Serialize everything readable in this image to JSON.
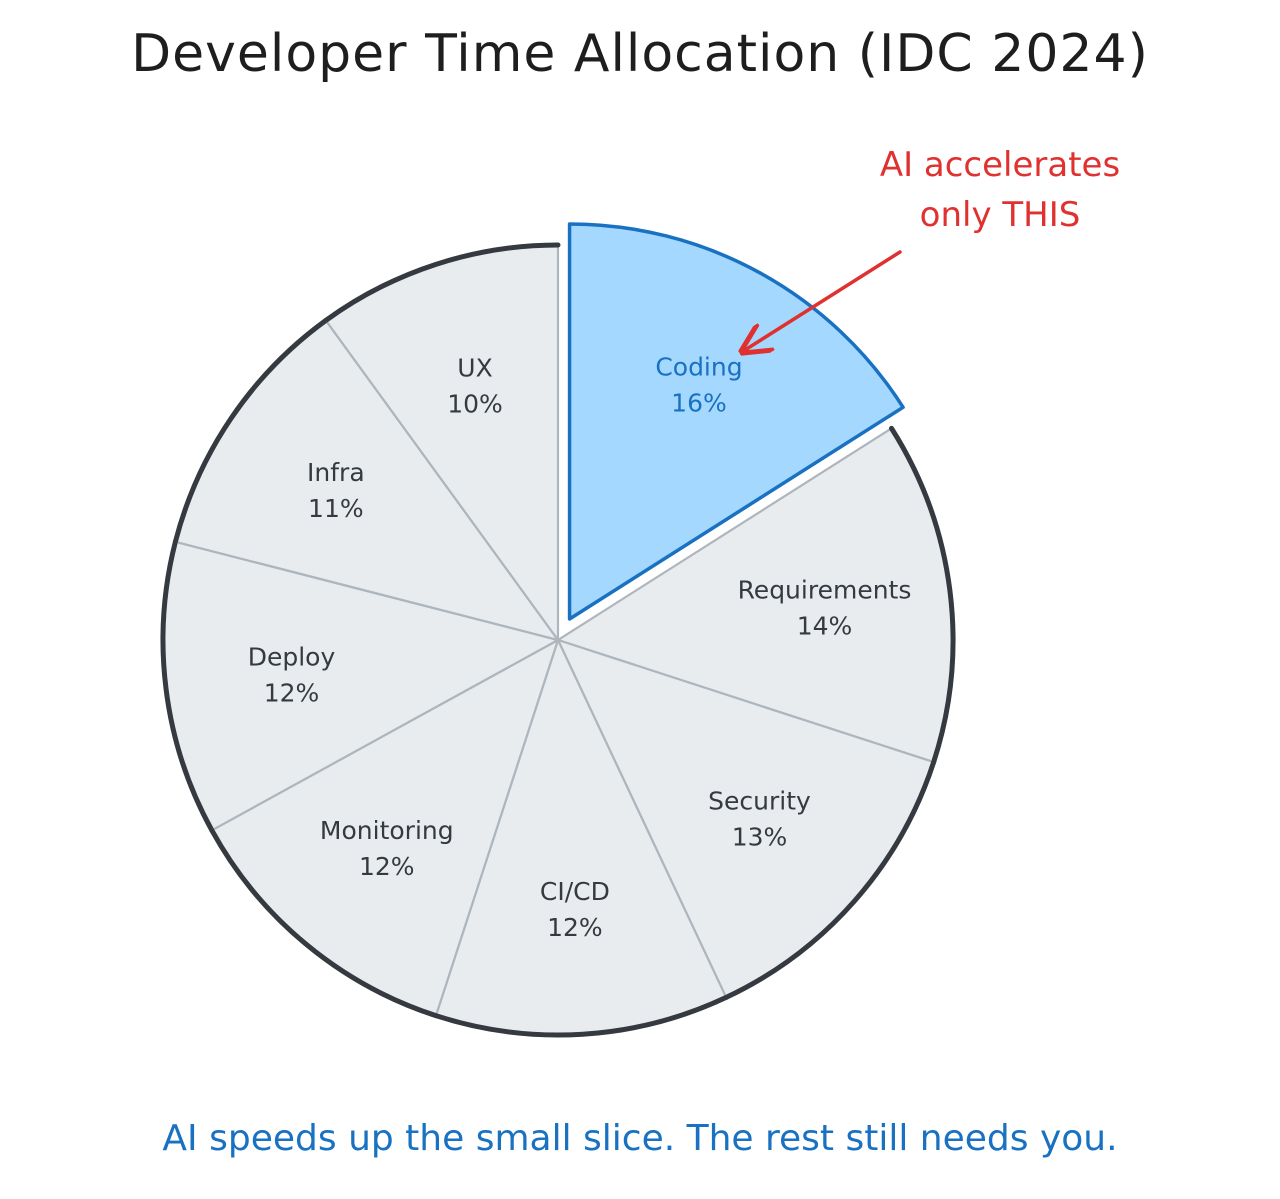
{
  "header": {
    "title": "Developer Time Allocation (IDC 2024)"
  },
  "footer": {
    "note": "AI speeds up the small slice. The rest still needs you."
  },
  "annotation": {
    "line1": "AI accelerates",
    "line2": "only THIS",
    "color": "#e03131"
  },
  "colors": {
    "highlight_fill": "#a5d8ff",
    "highlight_stroke": "#1971c2",
    "slice_fill": "#e9ecef",
    "slice_divider": "#adb5bd",
    "outline": "#343a40",
    "label": "#343a40"
  },
  "chart_data": {
    "type": "pie",
    "title": "Developer Time Allocation (IDC 2024)",
    "slices": [
      {
        "label": "Coding",
        "value": 16,
        "display": "16%",
        "highlight": true
      },
      {
        "label": "Requirements",
        "value": 14,
        "display": "14%"
      },
      {
        "label": "Security",
        "value": 13,
        "display": "13%"
      },
      {
        "label": "CI/CD",
        "value": 12,
        "display": "12%"
      },
      {
        "label": "Monitoring",
        "value": 12,
        "display": "12%"
      },
      {
        "label": "Deploy",
        "value": 12,
        "display": "12%"
      },
      {
        "label": "Infra",
        "value": 11,
        "display": "11%"
      },
      {
        "label": "UX",
        "value": 10,
        "display": "10%"
      }
    ],
    "exploded_slice": "Coding",
    "start": "12 o'clock",
    "direction": "clockwise"
  }
}
